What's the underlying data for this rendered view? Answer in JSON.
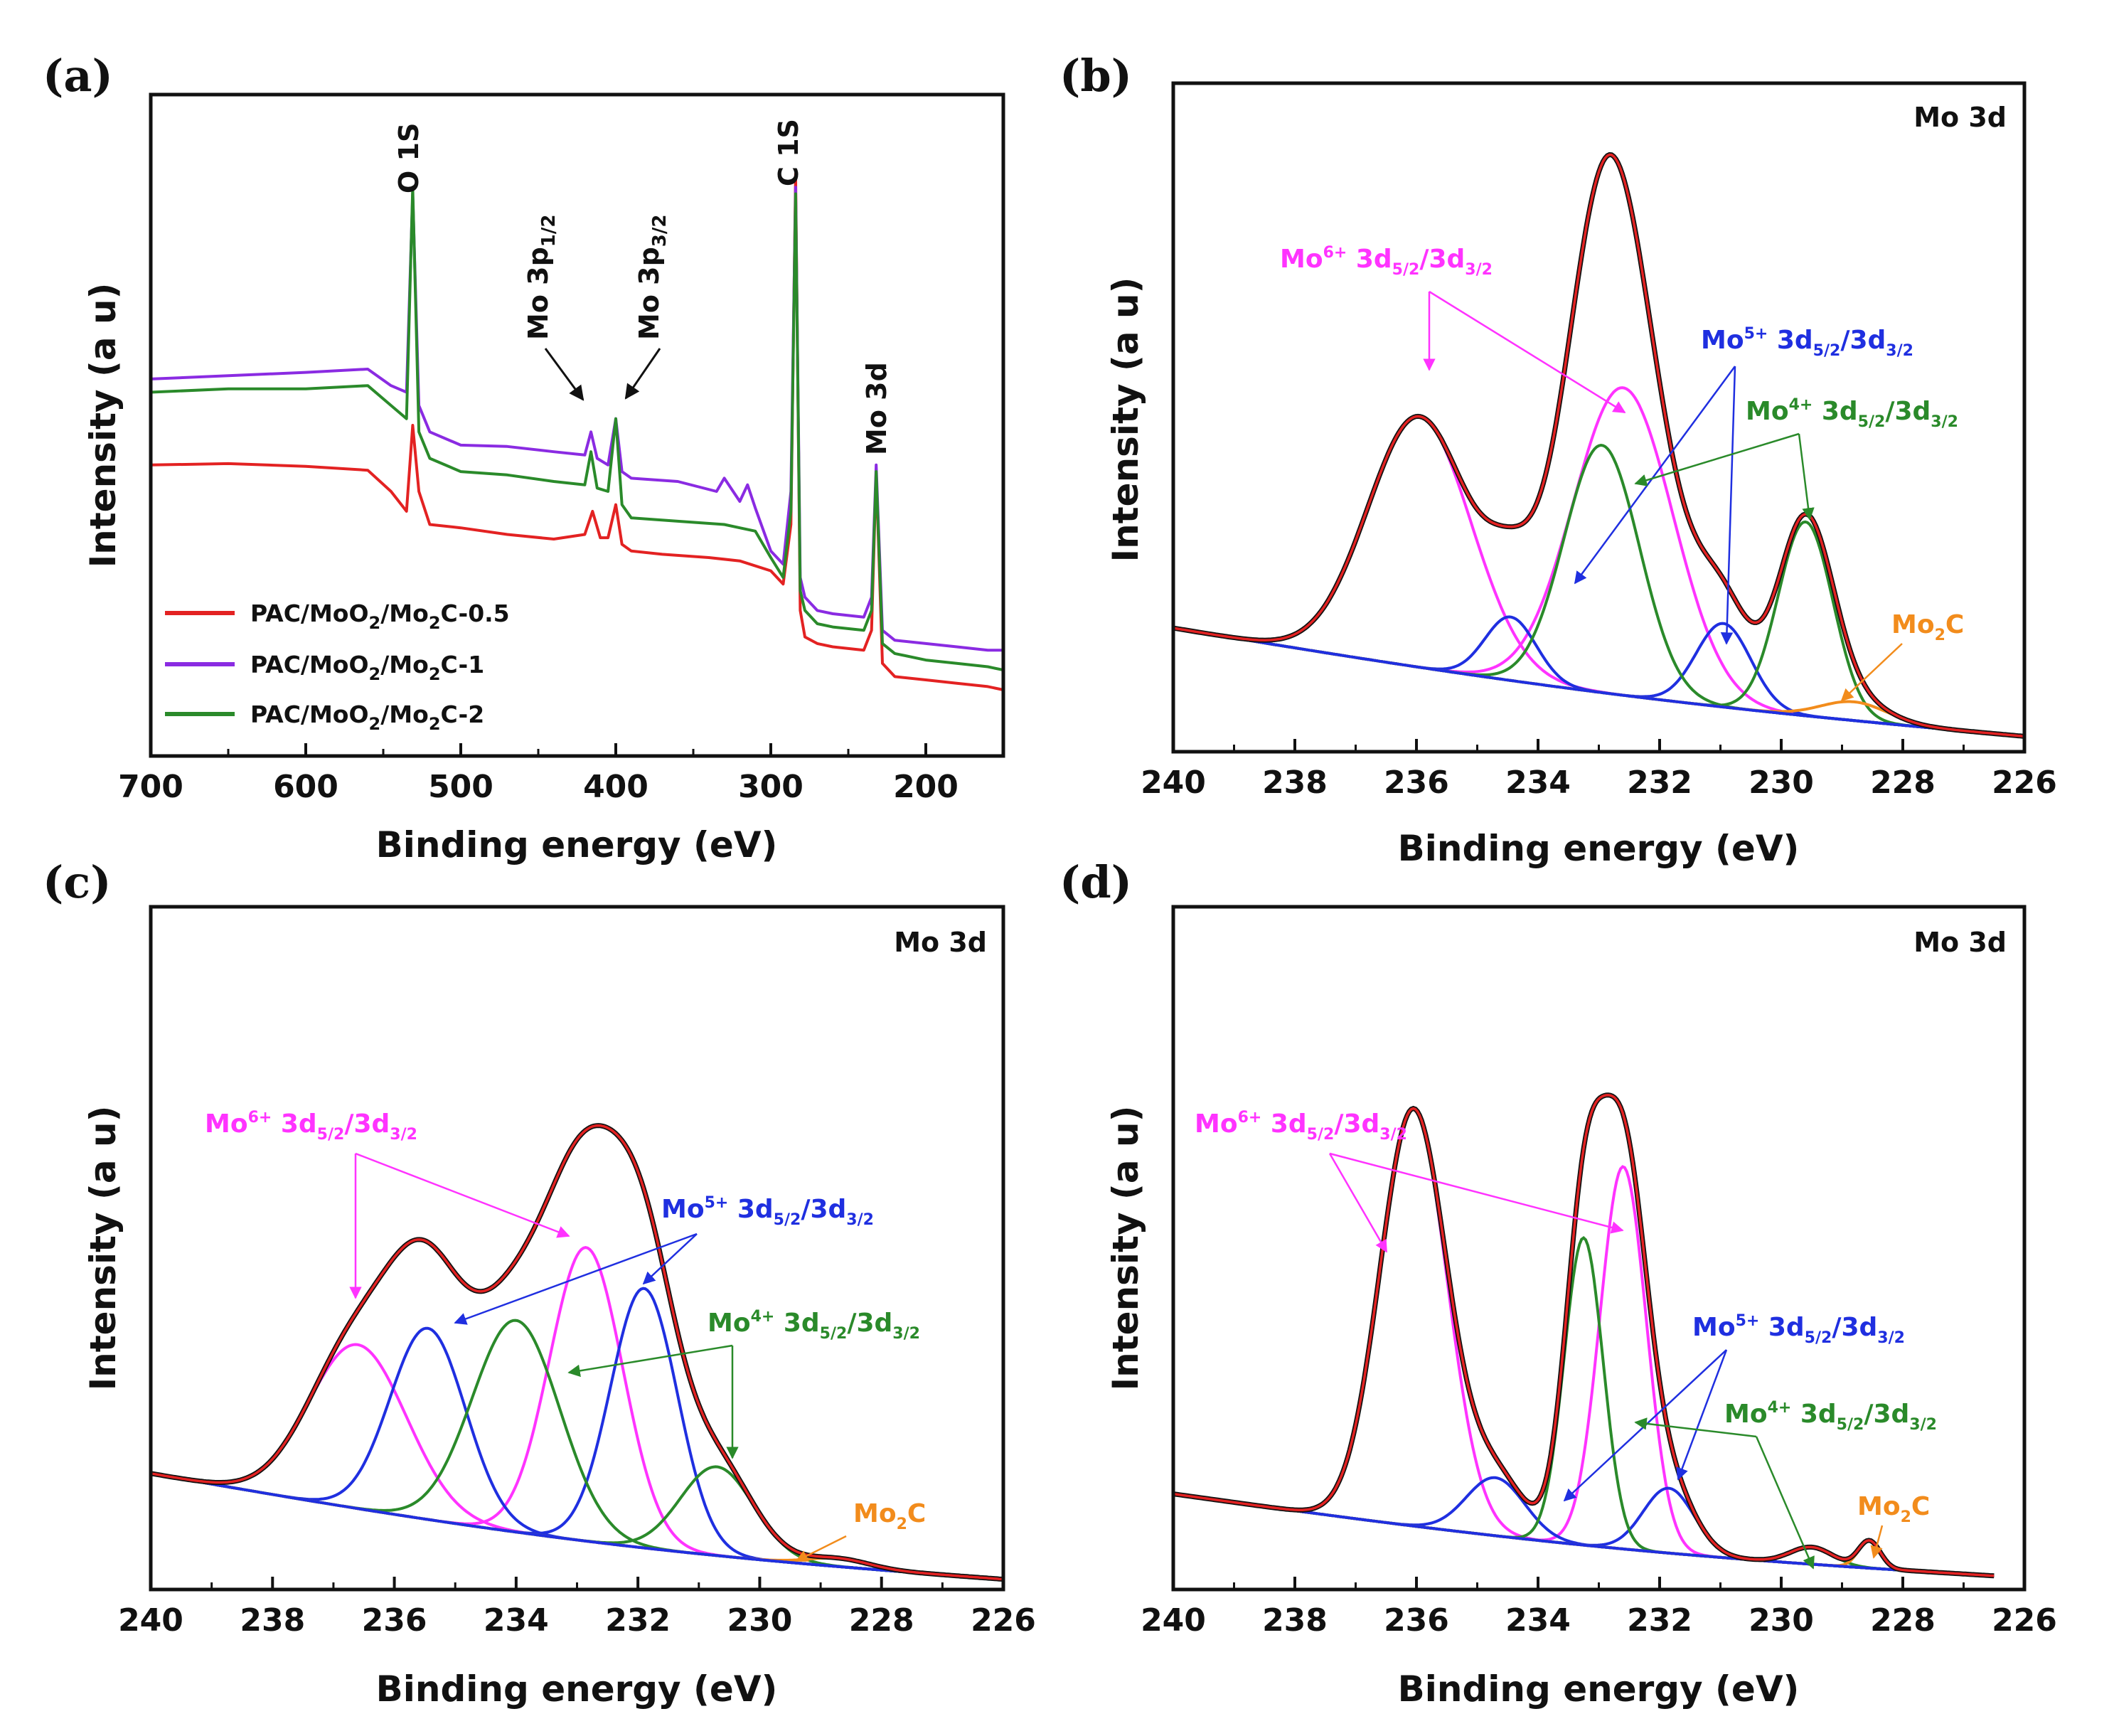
{
  "colors": {
    "red": "#e32222",
    "purple": "#8a2be2",
    "green": "#2a8a2a",
    "magenta": "#ff33ff",
    "blue": "#1f2fe0",
    "orange": "#f28c1c",
    "black": "#111111"
  },
  "chart_data": [
    {
      "panel": "(a)",
      "type": "line",
      "xlabel": "Binding energy (eV)",
      "ylabel": "Intensity (a u)",
      "xlim": [
        700,
        150
      ],
      "ylim": [
        0,
        100
      ],
      "xticks": [
        700,
        600,
        500,
        400,
        300,
        200
      ],
      "xtick_labels": [
        "700",
        "600",
        "500",
        "400",
        "300",
        "200"
      ],
      "series": [
        {
          "name": "PAC/MoO₂/Mo₂C-0.5",
          "legend_main": "PAC/MoO",
          "legend_s1": "2",
          "legend_mid": "/Mo",
          "legend_s2": "2",
          "legend_tail": "C-0.5",
          "color": "#e32222",
          "x": [
            700,
            650,
            600,
            560,
            545,
            535,
            531,
            527,
            520,
            500,
            470,
            440,
            420,
            415,
            410,
            405,
            400,
            396,
            390,
            370,
            340,
            320,
            300,
            292,
            287,
            284,
            281,
            278,
            270,
            260,
            240,
            235,
            232,
            228,
            220,
            200,
            180,
            160,
            150
          ],
          "y": [
            44,
            44.2,
            43.8,
            43.2,
            40,
            37,
            50,
            40,
            35,
            34.5,
            33.5,
            32.8,
            33.5,
            37,
            33,
            33,
            38,
            32,
            31,
            30.5,
            30,
            29.5,
            28,
            26,
            35,
            88,
            22,
            18,
            17,
            16.5,
            16,
            19,
            43,
            14,
            12,
            11.5,
            11,
            10.5,
            10
          ]
        },
        {
          "name": "PAC/MoO₂/Mo₂C-1",
          "legend_main": "PAC/MoO",
          "legend_s1": "2",
          "legend_mid": "/Mo",
          "legend_s2": "2",
          "legend_tail": "C-1",
          "color": "#8a2be2",
          "x": [
            700,
            650,
            600,
            560,
            545,
            535,
            531,
            527,
            520,
            500,
            470,
            440,
            420,
            416,
            412,
            405,
            400,
            396,
            390,
            360,
            335,
            330,
            320,
            315,
            310,
            300,
            292,
            287,
            284,
            281,
            278,
            270,
            260,
            240,
            235,
            232,
            228,
            220,
            200,
            180,
            160,
            150
          ],
          "y": [
            57,
            57.5,
            58,
            58.5,
            56,
            55,
            85,
            53,
            49,
            47,
            46.8,
            46,
            45.5,
            49,
            45,
            44,
            51,
            43,
            42,
            41.5,
            40,
            42,
            38.5,
            41,
            37.5,
            31,
            29,
            40,
            86,
            27,
            24,
            22,
            21.5,
            21,
            24,
            44,
            19,
            17.5,
            17,
            16.5,
            16,
            16
          ]
        },
        {
          "name": "PAC/MoO₂/Mo₂C-2",
          "legend_main": "PAC/MoO",
          "legend_s1": "2",
          "legend_mid": "/Mo",
          "legend_s2": "2",
          "legend_tail": "C-2",
          "color": "#2a8a2a",
          "x": [
            700,
            650,
            600,
            560,
            545,
            535,
            531,
            527,
            520,
            500,
            470,
            440,
            420,
            416,
            412,
            405,
            400,
            396,
            390,
            360,
            330,
            320,
            310,
            300,
            292,
            287,
            284,
            281,
            278,
            270,
            260,
            240,
            235,
            232,
            228,
            220,
            200,
            180,
            160,
            150
          ],
          "y": [
            55,
            55.5,
            55.5,
            56,
            53,
            51,
            86,
            49,
            45,
            43,
            42.5,
            41.5,
            41,
            46,
            40.5,
            40,
            51,
            38,
            36,
            35.5,
            35,
            34.5,
            34,
            30,
            27,
            37,
            85,
            25,
            22,
            20,
            19.5,
            19,
            22,
            43,
            17,
            15.5,
            14.5,
            14,
            13.5,
            13
          ]
        }
      ],
      "peak_labels": [
        {
          "text": "O 1S",
          "x": 531
        },
        {
          "text": "C 1S",
          "x": 284
        },
        {
          "text": "Mo 3d",
          "x": 232
        }
      ],
      "arrow_labels": [
        {
          "main": "Mo 3p",
          "sub": "1/2",
          "x": 416
        },
        {
          "main": "Mo 3p",
          "sub": "3/2",
          "x": 399
        }
      ]
    },
    {
      "panel": "(b)",
      "type": "line",
      "corner_label": "Mo 3d",
      "xlabel": "Binding energy (eV)",
      "ylabel": "Intensity (a u)",
      "xlim": [
        240,
        226
      ],
      "ylim": [
        0,
        100
      ],
      "xticks": [
        240,
        238,
        236,
        234,
        232,
        230,
        228,
        226
      ],
      "xtick_labels": [
        "240",
        "238",
        "236",
        "234",
        "232",
        "230",
        "228",
        "226"
      ],
      "baseline": {
        "x0": 240,
        "x1": 226,
        "y0": 18.5,
        "y1": 2.3,
        "mid_sag": 1.5
      },
      "peaks": [
        {
          "label": "Mo6+",
          "color": "#ff33ff",
          "center": 235.95,
          "height": 37.5,
          "sigma": 0.85
        },
        {
          "label": "Mo6+",
          "color": "#ff33ff",
          "center": 232.6,
          "height": 46,
          "sigma": 0.82
        },
        {
          "label": "Mo5+",
          "color": "#1f2fe0",
          "center": 234.45,
          "height": 9.5,
          "sigma": 0.42
        },
        {
          "label": "Mo5+",
          "color": "#1f2fe0",
          "center": 230.95,
          "height": 12.5,
          "sigma": 0.45
        },
        {
          "label": "Mo4+",
          "color": "#2a8a2a",
          "center": 232.95,
          "height": 37,
          "sigma": 0.62
        },
        {
          "label": "Mo4+",
          "color": "#2a8a2a",
          "center": 229.6,
          "height": 29,
          "sigma": 0.45
        },
        {
          "label": "Mo2C",
          "color": "#f28c1c",
          "center": 228.8,
          "height": 2.8,
          "sigma": 0.55
        }
      ],
      "labels": {
        "mo6": {
          "main": "Mo",
          "sup": "6+",
          "post": " 3d",
          "s1": "5/2",
          "mid": "/3d",
          "s2": "3/2",
          "color": "#ff33ff"
        },
        "mo5": {
          "main": "Mo",
          "sup": "5+",
          "post": " 3d",
          "s1": "5/2",
          "mid": "/3d",
          "s2": "3/2",
          "color": "#1f2fe0"
        },
        "mo4": {
          "main": "Mo",
          "sup": "4+",
          "post": " 3d",
          "s1": "5/2",
          "mid": "/3d",
          "s2": "3/2",
          "color": "#2a8a2a"
        },
        "mo2c": {
          "main": "Mo",
          "sub": "2",
          "tail": "C",
          "color": "#f28c1c"
        }
      }
    },
    {
      "panel": "(c)",
      "type": "line",
      "corner_label": "Mo 3d",
      "xlabel": "Binding energy (eV)",
      "ylabel": "Intensity (a u)",
      "xlim": [
        240,
        226
      ],
      "ylim": [
        0,
        100
      ],
      "xticks": [
        240,
        238,
        236,
        234,
        232,
        230,
        228,
        226
      ],
      "xtick_labels": [
        "240",
        "238",
        "236",
        "234",
        "232",
        "230",
        "228",
        "226"
      ],
      "baseline": {
        "x0": 240,
        "x1": 226,
        "y0": 17,
        "y1": 1.5,
        "mid_sag": 2
      },
      "peaks": [
        {
          "label": "Mo6+",
          "color": "#ff33ff",
          "center": 236.6,
          "height": 24,
          "sigma": 0.8
        },
        {
          "label": "Mo6+",
          "color": "#ff33ff",
          "center": 232.85,
          "height": 43,
          "sigma": 0.6
        },
        {
          "label": "Mo5+",
          "color": "#1f2fe0",
          "center": 235.45,
          "height": 28,
          "sigma": 0.62
        },
        {
          "label": "Mo5+",
          "color": "#1f2fe0",
          "center": 231.9,
          "height": 38,
          "sigma": 0.55
        },
        {
          "label": "Mo4+",
          "color": "#2a8a2a",
          "center": 234.0,
          "height": 31,
          "sigma": 0.72
        },
        {
          "label": "Mo4+",
          "color": "#2a8a2a",
          "center": 230.7,
          "height": 13,
          "sigma": 0.6
        },
        {
          "label": "Mo2C",
          "color": "#f28c1c",
          "center": 228.7,
          "height": 1.2,
          "sigma": 0.5
        }
      ],
      "labels": {
        "mo6": {
          "main": "Mo",
          "sup": "6+",
          "post": " 3d",
          "s1": "5/2",
          "mid": "/3d",
          "s2": "3/2",
          "color": "#ff33ff"
        },
        "mo5": {
          "main": "Mo",
          "sup": "5+",
          "post": " 3d",
          "s1": "5/2",
          "mid": "/3d",
          "s2": "3/2",
          "color": "#1f2fe0"
        },
        "mo4": {
          "main": "Mo",
          "sup": "4+",
          "post": " 3d",
          "s1": "5/2",
          "mid": "/3d",
          "s2": "3/2",
          "color": "#2a8a2a"
        },
        "mo2c": {
          "main": "Mo",
          "sub": "2",
          "tail": "C",
          "color": "#f28c1c"
        }
      }
    },
    {
      "panel": "(d)",
      "type": "line",
      "corner_label": "Mo 3d",
      "xlabel": "Binding energy (eV)",
      "ylabel": "Intensity (a u)",
      "xlim": [
        240,
        226
      ],
      "ylim": [
        0,
        100
      ],
      "xticks": [
        240,
        238,
        236,
        234,
        232,
        230,
        228,
        226
      ],
      "xtick_labels": [
        "240",
        "238",
        "236",
        "234",
        "232",
        "230",
        "228",
        "226"
      ],
      "baseline": {
        "x0": 240,
        "x1": 226.5,
        "y0": 14,
        "y1": 2,
        "mid_sag": 1.5
      },
      "peaks": [
        {
          "label": "Mo6+",
          "color": "#ff33ff",
          "center": 236.05,
          "height": 61,
          "sigma": 0.55
        },
        {
          "label": "Mo6+",
          "color": "#ff33ff",
          "center": 232.6,
          "height": 56,
          "sigma": 0.38
        },
        {
          "label": "Mo5+",
          "color": "#1f2fe0",
          "center": 234.7,
          "height": 8.5,
          "sigma": 0.48
        },
        {
          "label": "Mo5+",
          "color": "#1f2fe0",
          "center": 231.85,
          "height": 9.5,
          "sigma": 0.42
        },
        {
          "label": "Mo4+",
          "color": "#2a8a2a",
          "center": 233.25,
          "height": 45,
          "sigma": 0.32
        },
        {
          "label": "Mo4+",
          "color": "#2a8a2a",
          "center": 229.5,
          "height": 2.5,
          "sigma": 0.35
        },
        {
          "label": "Mo2C",
          "color": "#f28c1c",
          "center": 228.55,
          "height": 4,
          "sigma": 0.18
        }
      ],
      "labels": {
        "mo6": {
          "main": "Mo",
          "sup": "6+",
          "post": " 3d",
          "s1": "5/2",
          "mid": "/3d",
          "s2": "3/2",
          "color": "#ff33ff"
        },
        "mo5": {
          "main": "Mo",
          "sup": "5+",
          "post": " 3d",
          "s1": "5/2",
          "mid": "/3d",
          "s2": "3/2",
          "color": "#1f2fe0"
        },
        "mo4": {
          "main": "Mo",
          "sup": "4+",
          "post": " 3d",
          "s1": "5/2",
          "mid": "/3d",
          "s2": "3/2",
          "color": "#2a8a2a"
        },
        "mo2c": {
          "main": "Mo",
          "sub": "2",
          "tail": "C",
          "color": "#f28c1c"
        }
      }
    }
  ]
}
